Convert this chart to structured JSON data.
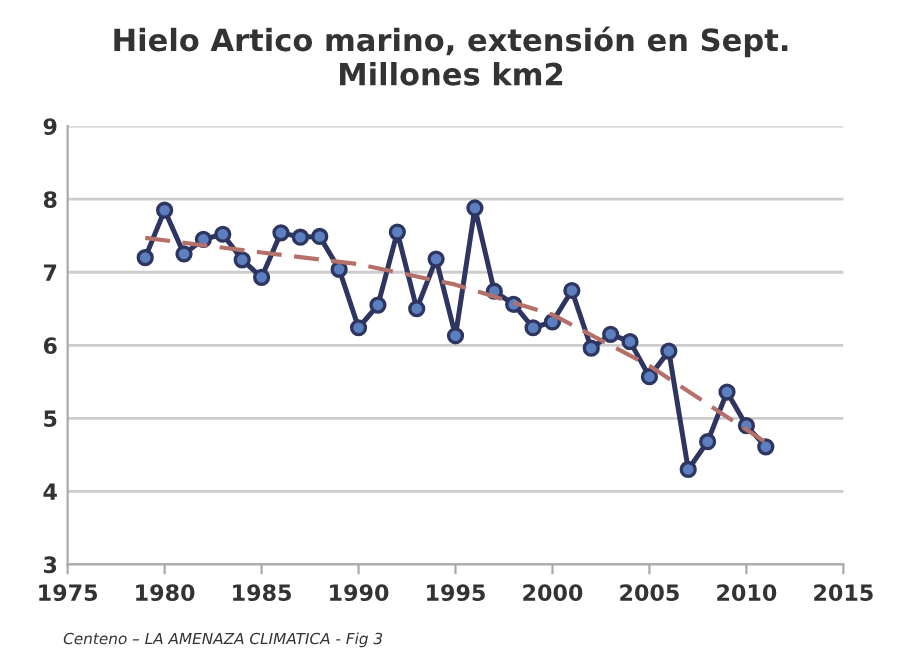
{
  "chart_data": {
    "type": "line",
    "title": "Hielo Artico marino, extensión en Sept.\nMillones km2",
    "x": [
      1979,
      1980,
      1981,
      1982,
      1983,
      1984,
      1985,
      1986,
      1987,
      1988,
      1989,
      1990,
      1991,
      1992,
      1993,
      1994,
      1995,
      1996,
      1997,
      1998,
      1999,
      2000,
      2001,
      2002,
      2003,
      2004,
      2005,
      2006,
      2007,
      2008,
      2009,
      2010,
      2011
    ],
    "series": [
      {
        "color": "#2e3560",
        "marker": "circle",
        "line_style": "solid",
        "values": [
          7.2,
          7.85,
          7.25,
          7.45,
          7.52,
          7.17,
          6.93,
          7.54,
          7.48,
          7.49,
          7.04,
          6.24,
          6.55,
          7.55,
          6.5,
          7.18,
          6.13,
          7.88,
          6.74,
          6.56,
          6.24,
          6.32,
          6.75,
          5.96,
          6.15,
          6.05,
          5.57,
          5.92,
          4.3,
          4.68,
          5.36,
          4.9,
          4.61
        ]
      },
      {
        "type": "line",
        "color": "#b5706a",
        "marker": "none",
        "line_style": "dashed",
        "x": [
          1979,
          1985,
          1990,
          1995,
          2000,
          2005,
          2011
        ],
        "values": [
          7.47,
          7.27,
          7.11,
          6.83,
          6.42,
          5.72,
          4.67
        ]
      }
    ],
    "xlim": [
      1975,
      2015
    ],
    "xticks": [
      1975,
      1980,
      1985,
      1990,
      1995,
      2000,
      2005,
      2010,
      2015
    ],
    "ylim": [
      3,
      9
    ],
    "yticks": [
      3,
      4,
      5,
      6,
      7,
      8,
      9
    ],
    "grid": "y",
    "annotations": [
      "Centeno – LA AMENAZA CLIMATICA - Fig 3"
    ]
  }
}
